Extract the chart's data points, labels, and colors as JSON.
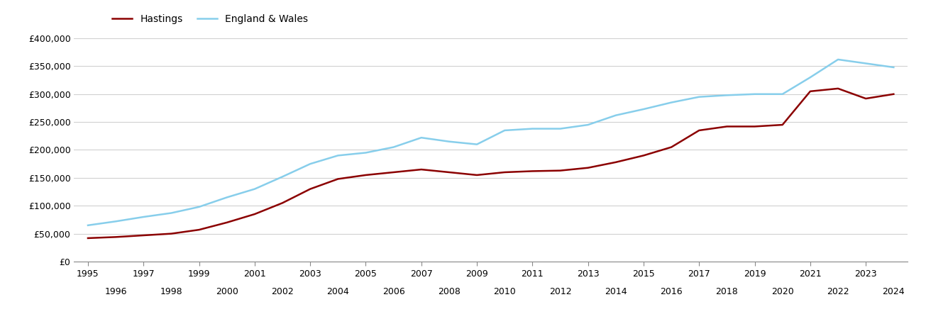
{
  "hastings": {
    "years": [
      1995,
      1996,
      1997,
      1998,
      1999,
      2000,
      2001,
      2002,
      2003,
      2004,
      2005,
      2006,
      2007,
      2008,
      2009,
      2010,
      2011,
      2012,
      2013,
      2014,
      2015,
      2016,
      2017,
      2018,
      2019,
      2020,
      2021,
      2022,
      2023,
      2024
    ],
    "values": [
      42000,
      44000,
      47000,
      50000,
      57000,
      70000,
      85000,
      105000,
      130000,
      148000,
      155000,
      160000,
      165000,
      160000,
      155000,
      160000,
      162000,
      163000,
      168000,
      178000,
      190000,
      205000,
      235000,
      242000,
      242000,
      245000,
      305000,
      310000,
      292000,
      300000
    ]
  },
  "england_wales": {
    "years": [
      1995,
      1996,
      1997,
      1998,
      1999,
      2000,
      2001,
      2002,
      2003,
      2004,
      2005,
      2006,
      2007,
      2008,
      2009,
      2010,
      2011,
      2012,
      2013,
      2014,
      2015,
      2016,
      2017,
      2018,
      2019,
      2020,
      2021,
      2022,
      2023,
      2024
    ],
    "values": [
      65000,
      72000,
      80000,
      87000,
      98000,
      115000,
      130000,
      152000,
      175000,
      190000,
      195000,
      205000,
      222000,
      215000,
      210000,
      235000,
      238000,
      238000,
      245000,
      262000,
      273000,
      285000,
      295000,
      298000,
      300000,
      300000,
      330000,
      362000,
      355000,
      348000
    ]
  },
  "hastings_color": "#8B0000",
  "england_wales_color": "#87CEEB",
  "background_color": "#ffffff",
  "grid_color": "#d0d0d0",
  "ylim": [
    0,
    400000
  ],
  "yticks": [
    0,
    50000,
    100000,
    150000,
    200000,
    250000,
    300000,
    350000,
    400000
  ],
  "legend_hastings": "Hastings",
  "legend_england_wales": "England & Wales",
  "odd_years": [
    1995,
    1997,
    1999,
    2001,
    2003,
    2005,
    2007,
    2009,
    2011,
    2013,
    2015,
    2017,
    2019,
    2021,
    2023
  ],
  "even_years": [
    1996,
    1998,
    2000,
    2002,
    2004,
    2006,
    2008,
    2010,
    2012,
    2014,
    2016,
    2018,
    2020,
    2022,
    2024
  ]
}
